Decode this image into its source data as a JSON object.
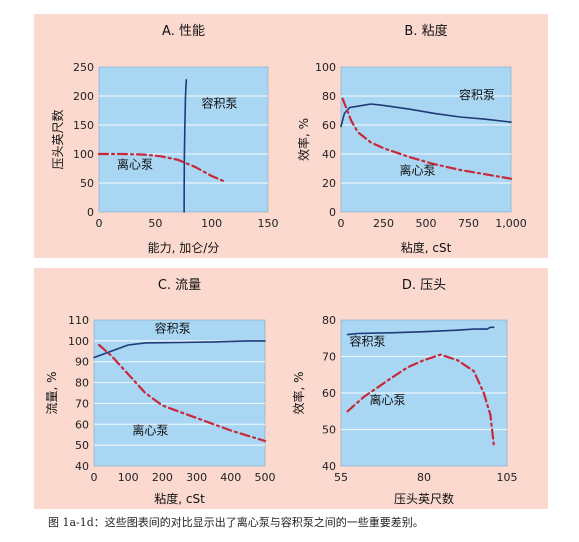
{
  "caption": "图 1a-1d：这些图表间的对比显示出了离心泵与容积泵之间的一些重要差别。",
  "colors": {
    "panel_background": "#fbd9cf",
    "plot_background": "#a9d6f3",
    "grid": "#e8f3fb",
    "positive_displacement_pump": "#1f3a78",
    "centrifugal_pump": "#c8283a"
  },
  "chart_data": [
    {
      "type": "line",
      "title": "A. 性能",
      "xlabel": "能力, 加仑/分",
      "ylabel": "压头英尺数",
      "xlim": [
        0,
        150
      ],
      "ylim": [
        0,
        250
      ],
      "xticks": [
        "0",
        "50",
        "100",
        "150"
      ],
      "yticks": [
        "0",
        "50",
        "100",
        "150",
        "200",
        "250"
      ],
      "grid": true,
      "series": [
        {
          "name": "容积泵",
          "style": "solid",
          "color": "#1f3a78",
          "points": [
            [
              75.5,
              0
            ],
            [
              75.6,
              50
            ],
            [
              75.8,
              100
            ],
            [
              76.2,
              150
            ],
            [
              76.8,
              200
            ],
            [
              77.5,
              228
            ]
          ]
        },
        {
          "name": "离心泵",
          "style": "dashdot",
          "color": "#c8283a",
          "points": [
            [
              0,
              100
            ],
            [
              20,
              100
            ],
            [
              40,
              99
            ],
            [
              55,
              96
            ],
            [
              70,
              90
            ],
            [
              85,
              78
            ],
            [
              100,
              62
            ],
            [
              112,
              52
            ]
          ]
        }
      ],
      "annotations": [
        {
          "text": "容积泵",
          "x": 107,
          "y": 180
        },
        {
          "text": "离心泵",
          "x": 32,
          "y": 75
        }
      ]
    },
    {
      "type": "line",
      "title": "B. 粘度",
      "xlabel": "粘度, cSt",
      "ylabel": "效率, %",
      "xlim": [
        0,
        1000
      ],
      "ylim": [
        0,
        100
      ],
      "xticks": [
        "0",
        "250",
        "500",
        "750",
        "1,000"
      ],
      "yticks": [
        "0",
        "20",
        "40",
        "60",
        "80",
        "100"
      ],
      "grid": true,
      "series": [
        {
          "name": "容积泵",
          "style": "solid",
          "color": "#1f3a78",
          "points": [
            [
              0,
              59
            ],
            [
              20,
              68
            ],
            [
              50,
              72
            ],
            [
              100,
              73
            ],
            [
              175,
              74.5
            ],
            [
              250,
              73.5
            ],
            [
              400,
              71
            ],
            [
              550,
              68
            ],
            [
              700,
              65.5
            ],
            [
              850,
              64
            ],
            [
              1000,
              62
            ]
          ]
        },
        {
          "name": "离心泵",
          "style": "dashdot",
          "color": "#c8283a",
          "points": [
            [
              10,
              78
            ],
            [
              30,
              72
            ],
            [
              60,
              63
            ],
            [
              100,
              55
            ],
            [
              175,
              48
            ],
            [
              250,
              44
            ],
            [
              400,
              38
            ],
            [
              550,
              33
            ],
            [
              700,
              29
            ],
            [
              850,
              26
            ],
            [
              1000,
              23
            ]
          ]
        }
      ],
      "annotations": [
        {
          "text": "容积泵",
          "x": 800,
          "y": 78
        },
        {
          "text": "离心泵",
          "x": 450,
          "y": 26
        }
      ]
    },
    {
      "type": "line",
      "title": "C. 流量",
      "xlabel": "粘度, cSt",
      "ylabel": "流量, %",
      "xlim": [
        0,
        500
      ],
      "ylim": [
        40,
        110
      ],
      "xticks": [
        "0",
        "100",
        "200",
        "300",
        "400",
        "500"
      ],
      "yticks": [
        "40",
        "50",
        "60",
        "70",
        "80",
        "90",
        "100",
        "110"
      ],
      "grid": true,
      "series": [
        {
          "name": "容积泵",
          "style": "solid",
          "color": "#1f3a78",
          "points": [
            [
              0,
              92
            ],
            [
              50,
              95
            ],
            [
              100,
              98
            ],
            [
              150,
              99
            ],
            [
              250,
              99.2
            ],
            [
              350,
              99.5
            ],
            [
              450,
              100
            ],
            [
              500,
              100
            ]
          ]
        },
        {
          "name": "离心泵",
          "style": "dashdot",
          "color": "#c8283a",
          "points": [
            [
              15,
              98
            ],
            [
              50,
              93
            ],
            [
              100,
              84
            ],
            [
              150,
              75
            ],
            [
              200,
              69
            ],
            [
              300,
              63
            ],
            [
              400,
              57
            ],
            [
              500,
              52
            ]
          ]
        }
      ],
      "annotations": [
        {
          "text": "容积泵",
          "x": 230,
          "y": 104
        },
        {
          "text": "离心泵",
          "x": 165,
          "y": 55
        }
      ]
    },
    {
      "type": "line",
      "title": "D. 压头",
      "xlabel": "压头英尺数",
      "ylabel": "效率, %",
      "xlim": [
        55,
        105
      ],
      "ylim": [
        40,
        80
      ],
      "xticks": [
        "55",
        "80",
        "105"
      ],
      "yticks": [
        "40",
        "50",
        "60",
        "70",
        "80"
      ],
      "grid": true,
      "series": [
        {
          "name": "容积泵",
          "style": "solid",
          "color": "#1f3a78",
          "points": [
            [
              57,
              76
            ],
            [
              60,
              76.3
            ],
            [
              70,
              76.5
            ],
            [
              80,
              76.8
            ],
            [
              90,
              77.2
            ],
            [
              95,
              77.5
            ],
            [
              99,
              77.5
            ],
            [
              100,
              78
            ],
            [
              101,
              78
            ]
          ]
        },
        {
          "name": "离心泵",
          "style": "dashdot",
          "color": "#c8283a",
          "points": [
            [
              57,
              55
            ],
            [
              62,
              59
            ],
            [
              70,
              64
            ],
            [
              75,
              67
            ],
            [
              80,
              69
            ],
            [
              85,
              70.5
            ],
            [
              90,
              69
            ],
            [
              95,
              66
            ],
            [
              98,
              60
            ],
            [
              100,
              54
            ],
            [
              101,
              46
            ]
          ]
        }
      ],
      "annotations": [
        {
          "text": "容积泵",
          "x": 63,
          "y": 73
        },
        {
          "text": "离心泵",
          "x": 69,
          "y": 57
        }
      ]
    }
  ]
}
